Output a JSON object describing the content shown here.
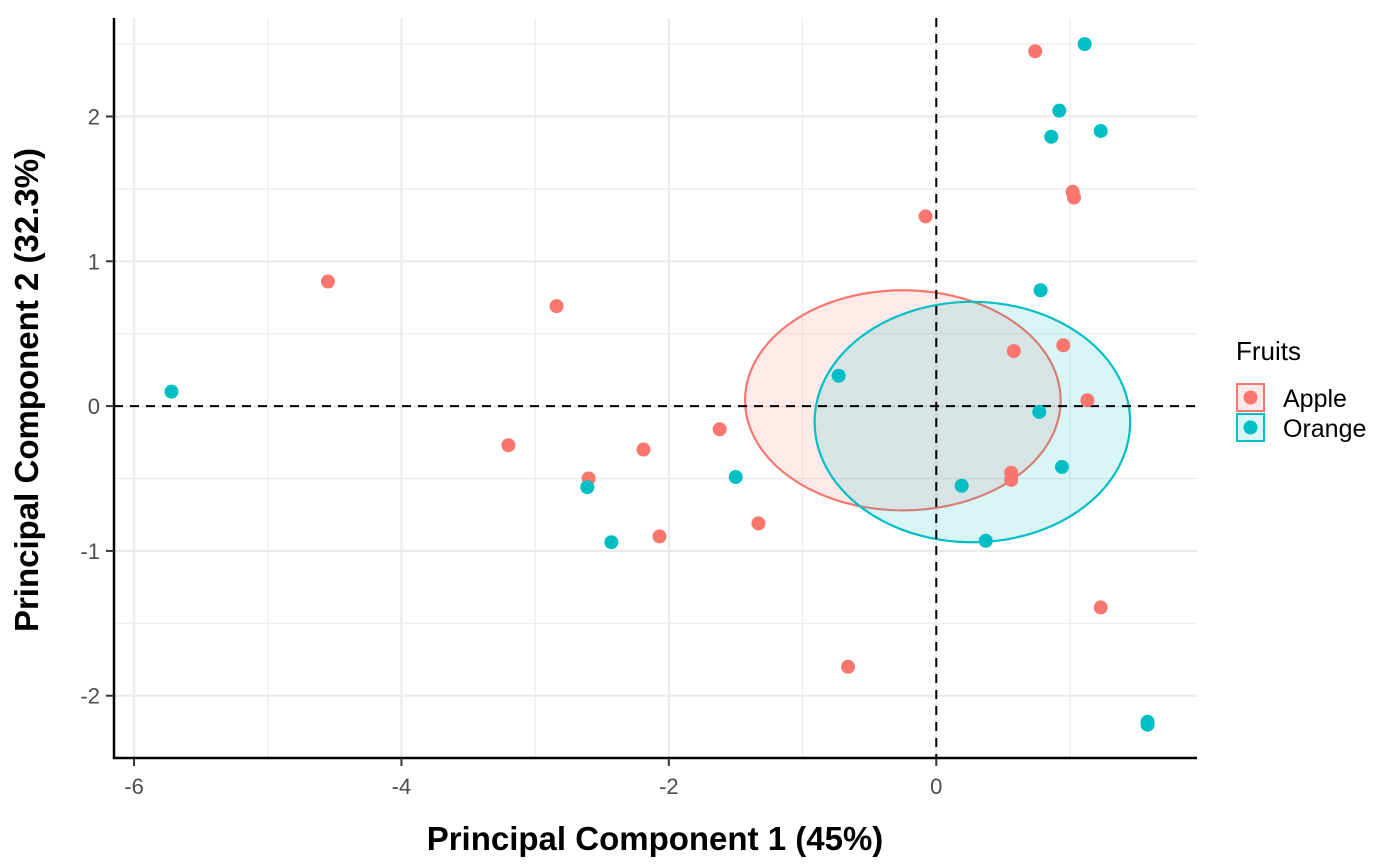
{
  "chart_data": {
    "type": "scatter",
    "xlabel": "Principal Component 1 (45%)",
    "ylabel": "Principal Component 2 (32.3%)",
    "xlim": [
      -6.15,
      1.95
    ],
    "ylim": [
      -2.43,
      2.68
    ],
    "x_ticks": [
      -6,
      -4,
      -2,
      0
    ],
    "y_ticks": [
      -2,
      -1,
      0,
      1,
      2
    ],
    "grid": true,
    "reference_lines": {
      "x": 0,
      "y": 0,
      "style": "dashed"
    },
    "legend": {
      "title": "Fruits",
      "position": "right"
    },
    "series": [
      {
        "name": "Apple",
        "color": "#F8766D",
        "ellipse": {
          "cx": -0.25,
          "cy": 0.04,
          "rx": 1.18,
          "ry": 0.76
        },
        "points": [
          [
            0.74,
            2.45
          ],
          [
            -0.08,
            1.31
          ],
          [
            1.02,
            1.48
          ],
          [
            1.03,
            1.44
          ],
          [
            -4.55,
            0.86
          ],
          [
            -2.84,
            0.69
          ],
          [
            0.58,
            0.38
          ],
          [
            0.95,
            0.42
          ],
          [
            1.13,
            0.04
          ],
          [
            -3.2,
            -0.27
          ],
          [
            -1.62,
            -0.16
          ],
          [
            -2.19,
            -0.3
          ],
          [
            -2.6,
            -0.5
          ],
          [
            0.56,
            -0.46
          ],
          [
            0.56,
            -0.51
          ],
          [
            -1.33,
            -0.81
          ],
          [
            -2.07,
            -0.9
          ],
          [
            1.23,
            -1.39
          ],
          [
            -0.66,
            -1.8
          ]
        ]
      },
      {
        "name": "Orange",
        "color": "#00BFC4",
        "ellipse": {
          "cx": 0.27,
          "cy": -0.11,
          "rx": 1.18,
          "ry": 0.83
        },
        "points": [
          [
            1.11,
            2.5
          ],
          [
            0.92,
            2.04
          ],
          [
            0.86,
            1.86
          ],
          [
            1.23,
            1.9
          ],
          [
            0.78,
            0.8
          ],
          [
            -0.73,
            0.21
          ],
          [
            -5.72,
            0.1
          ],
          [
            0.77,
            -0.04
          ],
          [
            0.94,
            -0.42
          ],
          [
            0.19,
            -0.55
          ],
          [
            -1.5,
            -0.49
          ],
          [
            -2.61,
            -0.56
          ],
          [
            0.37,
            -0.93
          ],
          [
            -2.43,
            -0.94
          ],
          [
            1.58,
            -2.18
          ],
          [
            1.58,
            -2.2
          ]
        ]
      }
    ]
  }
}
